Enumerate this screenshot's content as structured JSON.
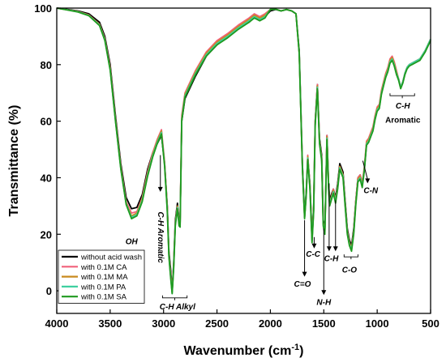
{
  "chart_data": {
    "type": "line",
    "xlabel": "Wavenumber (cm",
    "xlabel_sup": "-1",
    "xlabel_close": ")",
    "ylabel": "Transmittance (%)",
    "xlim": [
      4000,
      500
    ],
    "ylim": [
      -8,
      100
    ],
    "x_ticks": [
      4000,
      3500,
      3000,
      2500,
      2000,
      1500,
      1000,
      500
    ],
    "y_ticks": [
      0,
      20,
      40,
      60,
      80,
      100
    ],
    "grid": false,
    "legend_position": "bottom-left",
    "series": [
      {
        "name": "without acid wash",
        "color": "#000000",
        "x": [
          4000,
          3900,
          3800,
          3700,
          3600,
          3550,
          3500,
          3450,
          3400,
          3350,
          3300,
          3250,
          3200,
          3150,
          3100,
          3060,
          3020,
          2990,
          2965,
          2950,
          2935,
          2920,
          2905,
          2890,
          2870,
          2855,
          2845,
          2830,
          2800,
          2700,
          2600,
          2500,
          2400,
          2300,
          2200,
          2150,
          2100,
          2050,
          2000,
          1950,
          1900,
          1850,
          1800,
          1760,
          1730,
          1700,
          1680,
          1665,
          1650,
          1630,
          1610,
          1595,
          1580,
          1560,
          1540,
          1520,
          1505,
          1490,
          1470,
          1455,
          1445,
          1430,
          1410,
          1390,
          1370,
          1350,
          1320,
          1300,
          1280,
          1260,
          1240,
          1220,
          1200,
          1180,
          1160,
          1140,
          1120,
          1100,
          1080,
          1060,
          1040,
          1020,
          1000,
          980,
          960,
          940,
          920,
          900,
          880,
          860,
          840,
          820,
          800,
          780,
          760,
          740,
          720,
          700,
          650,
          600,
          550,
          500
        ],
        "y": [
          100,
          99.5,
          99,
          98,
          95,
          90,
          80,
          62,
          45,
          33,
          29,
          29.5,
          34,
          43,
          49,
          52,
          55,
          45,
          30,
          14,
          8,
          0,
          10,
          25,
          31,
          25,
          24,
          60,
          68,
          76,
          83,
          87,
          90,
          93,
          95,
          97,
          96,
          97,
          99,
          99.5,
          99,
          99.5,
          99,
          98,
          85,
          45,
          27,
          35,
          47,
          38,
          19,
          30,
          60,
          73,
          54,
          48,
          25,
          22,
          55,
          38,
          32,
          34,
          36,
          33,
          38,
          45,
          42,
          32,
          22,
          18,
          16,
          22,
          32,
          40,
          41,
          38,
          43,
          52,
          53,
          55,
          57,
          61,
          64,
          65,
          70,
          73,
          76,
          78,
          81,
          82,
          80,
          77,
          75,
          72,
          74,
          77,
          79,
          80,
          81,
          82,
          85,
          89
        ]
      },
      {
        "name": "with 0.1M CA",
        "color": "#f0607a",
        "x": [
          4000,
          3900,
          3800,
          3700,
          3600,
          3550,
          3500,
          3450,
          3400,
          3350,
          3300,
          3250,
          3200,
          3150,
          3100,
          3060,
          3020,
          2990,
          2965,
          2950,
          2935,
          2920,
          2905,
          2890,
          2870,
          2855,
          2845,
          2830,
          2800,
          2700,
          2600,
          2500,
          2400,
          2300,
          2200,
          2150,
          2100,
          2050,
          2000,
          1950,
          1900,
          1850,
          1800,
          1760,
          1730,
          1700,
          1680,
          1665,
          1650,
          1630,
          1610,
          1595,
          1580,
          1560,
          1540,
          1520,
          1505,
          1490,
          1470,
          1455,
          1445,
          1430,
          1410,
          1390,
          1370,
          1350,
          1320,
          1300,
          1280,
          1260,
          1240,
          1220,
          1200,
          1180,
          1160,
          1140,
          1120,
          1100,
          1080,
          1060,
          1040,
          1020,
          1000,
          980,
          960,
          940,
          920,
          900,
          880,
          860,
          840,
          820,
          800,
          780,
          760,
          740,
          720,
          700,
          650,
          600,
          550,
          500
        ],
        "y": [
          100,
          99.4,
          98.8,
          97.6,
          94.3,
          89.2,
          79,
          61,
          44,
          31.5,
          27.5,
          28,
          33,
          42,
          49,
          53.5,
          57,
          45.5,
          29.5,
          13,
          6.5,
          -0.5,
          9,
          24,
          30,
          24,
          24,
          62,
          70,
          78,
          84.5,
          88.5,
          91,
          94,
          96.5,
          98,
          97,
          98,
          99.5,
          99.6,
          99,
          99.5,
          99,
          98,
          84,
          44,
          26,
          34,
          48,
          37,
          18,
          29,
          60,
          73,
          53,
          47,
          24,
          21,
          55,
          37,
          31,
          33,
          36,
          32,
          37,
          44,
          41,
          31,
          21,
          17,
          15,
          21,
          32,
          40,
          41,
          38,
          44,
          53,
          54,
          56,
          58,
          62,
          65,
          66,
          71,
          74,
          77,
          79,
          82,
          83,
          81,
          78,
          75,
          72,
          74,
          77,
          79,
          80,
          81,
          82,
          85,
          89
        ]
      },
      {
        "name": "with 0.1M MA",
        "color": "#c98a1e",
        "x": [
          4000,
          3900,
          3800,
          3700,
          3600,
          3550,
          3500,
          3450,
          3400,
          3350,
          3300,
          3250,
          3200,
          3150,
          3100,
          3060,
          3020,
          2990,
          2965,
          2950,
          2935,
          2920,
          2905,
          2890,
          2870,
          2855,
          2845,
          2830,
          2800,
          2700,
          2600,
          2500,
          2400,
          2300,
          2200,
          2150,
          2100,
          2050,
          2000,
          1950,
          1900,
          1850,
          1800,
          1760,
          1730,
          1700,
          1680,
          1665,
          1650,
          1630,
          1610,
          1595,
          1580,
          1560,
          1540,
          1520,
          1505,
          1490,
          1470,
          1455,
          1445,
          1430,
          1410,
          1390,
          1370,
          1350,
          1320,
          1300,
          1280,
          1260,
          1240,
          1220,
          1200,
          1180,
          1160,
          1140,
          1120,
          1100,
          1080,
          1060,
          1040,
          1020,
          1000,
          980,
          960,
          940,
          920,
          900,
          880,
          860,
          840,
          820,
          800,
          780,
          760,
          740,
          720,
          700,
          650,
          600,
          550,
          500
        ],
        "y": [
          100,
          99.4,
          98.8,
          97.5,
          94.2,
          89,
          78.5,
          60.5,
          43.5,
          31,
          26.5,
          27.5,
          32.5,
          41.5,
          48.5,
          53,
          56.5,
          45,
          29,
          13,
          6,
          -0.5,
          9,
          24,
          30,
          24,
          23.5,
          61,
          69.5,
          77.5,
          84,
          88,
          90.5,
          93.5,
          96,
          97.5,
          96.5,
          97.5,
          99.5,
          99.6,
          99,
          99.5,
          99,
          98,
          84,
          44,
          26,
          34,
          47.5,
          37,
          18,
          29,
          59.5,
          72.5,
          53,
          47,
          24,
          21,
          54.5,
          37,
          31,
          33,
          35.5,
          32,
          37,
          44,
          41,
          31,
          21,
          17,
          15,
          21,
          31.5,
          39.5,
          40.5,
          37.5,
          43.5,
          52.5,
          53.5,
          55.5,
          57.5,
          61.5,
          64.5,
          65.5,
          70.5,
          73.5,
          76.5,
          78.5,
          81.5,
          82.5,
          80.5,
          77.5,
          75,
          72,
          74,
          77,
          79,
          80,
          81,
          82,
          85,
          89
        ]
      },
      {
        "name": "with 0.1M PA",
        "color": "#3fd0a0",
        "x": [
          4000,
          3900,
          3800,
          3700,
          3600,
          3550,
          3500,
          3450,
          3400,
          3350,
          3300,
          3250,
          3200,
          3150,
          3100,
          3060,
          3020,
          2990,
          2965,
          2950,
          2935,
          2920,
          2905,
          2890,
          2870,
          2855,
          2845,
          2830,
          2800,
          2700,
          2600,
          2500,
          2400,
          2300,
          2200,
          2150,
          2100,
          2050,
          2000,
          1950,
          1900,
          1850,
          1800,
          1760,
          1730,
          1700,
          1680,
          1665,
          1650,
          1630,
          1610,
          1595,
          1580,
          1560,
          1540,
          1520,
          1505,
          1490,
          1470,
          1455,
          1445,
          1430,
          1410,
          1390,
          1370,
          1350,
          1320,
          1300,
          1280,
          1260,
          1240,
          1220,
          1200,
          1180,
          1160,
          1140,
          1120,
          1100,
          1080,
          1060,
          1040,
          1020,
          1000,
          980,
          960,
          940,
          920,
          900,
          880,
          860,
          840,
          820,
          800,
          780,
          760,
          740,
          720,
          700,
          650,
          600,
          550,
          500
        ],
        "y": [
          100,
          99.4,
          98.7,
          97.4,
          94,
          88.8,
          78.2,
          60.2,
          43.2,
          30.8,
          26,
          27,
          32,
          41,
          48,
          52.5,
          56,
          44.5,
          28.5,
          12.5,
          5.5,
          -1,
          8.5,
          23.5,
          29.5,
          23.5,
          23,
          60.5,
          69,
          77,
          83.5,
          87.5,
          90,
          93,
          95.5,
          97,
          96,
          97,
          99.5,
          99.6,
          99,
          99.5,
          99,
          98,
          84,
          44,
          26,
          34,
          47,
          36.5,
          17.5,
          28.5,
          59,
          72,
          52.5,
          46.5,
          23.5,
          20.5,
          54,
          36.5,
          30.5,
          32.5,
          35,
          31.5,
          36.5,
          43.5,
          40.5,
          30.5,
          20.5,
          16.5,
          14.5,
          20.5,
          31,
          39,
          40,
          37,
          43,
          52,
          53,
          55,
          57,
          61,
          64,
          65,
          70,
          73,
          76,
          78,
          81,
          82,
          80,
          77,
          75,
          72,
          74,
          77,
          79,
          80,
          81,
          82,
          85,
          89
        ]
      },
      {
        "name": "with 0.1M SA",
        "color": "#1f9a1f",
        "x": [
          4000,
          3900,
          3800,
          3700,
          3600,
          3550,
          3500,
          3450,
          3400,
          3350,
          3300,
          3250,
          3200,
          3150,
          3100,
          3060,
          3020,
          2990,
          2965,
          2950,
          2935,
          2920,
          2905,
          2890,
          2870,
          2855,
          2845,
          2830,
          2800,
          2700,
          2600,
          2500,
          2400,
          2300,
          2200,
          2150,
          2100,
          2050,
          2000,
          1950,
          1900,
          1850,
          1800,
          1760,
          1730,
          1700,
          1680,
          1665,
          1650,
          1630,
          1610,
          1595,
          1580,
          1560,
          1540,
          1520,
          1505,
          1490,
          1470,
          1455,
          1445,
          1430,
          1410,
          1390,
          1370,
          1350,
          1320,
          1300,
          1280,
          1260,
          1240,
          1220,
          1200,
          1180,
          1160,
          1140,
          1120,
          1100,
          1080,
          1060,
          1040,
          1020,
          1000,
          980,
          960,
          940,
          920,
          900,
          880,
          860,
          840,
          820,
          800,
          780,
          760,
          740,
          720,
          700,
          650,
          600,
          550,
          500
        ],
        "y": [
          100,
          99.3,
          98.6,
          97.3,
          93.8,
          88.5,
          78,
          60,
          43,
          30.5,
          25.5,
          26.5,
          31.5,
          40.5,
          47.5,
          52,
          55.5,
          44,
          28,
          12,
          5,
          -1,
          8,
          23,
          29,
          23,
          22.5,
          60,
          68.5,
          76.5,
          83,
          87,
          89.5,
          92.5,
          95,
          96.5,
          95.5,
          96.5,
          99.5,
          99.6,
          99,
          99.5,
          99,
          98,
          84,
          43.5,
          25.5,
          33.5,
          46.5,
          36,
          17,
          28,
          58.5,
          71.5,
          52,
          46,
          23,
          20,
          53.5,
          36,
          30,
          32,
          34.5,
          31,
          36,
          43,
          40,
          30,
          20,
          16,
          14,
          20,
          30.5,
          38.5,
          39.5,
          36.5,
          42.5,
          51.5,
          52.5,
          54.5,
          56.5,
          60.5,
          63.5,
          64.5,
          69.5,
          72.5,
          75.5,
          77.5,
          80.5,
          81.5,
          79.5,
          76.5,
          74.5,
          71.5,
          73.5,
          76.5,
          78.5,
          79.5,
          80.5,
          81.5,
          84.5,
          88.5
        ]
      }
    ],
    "annotations": [
      {
        "text": "OH",
        "style": "italic",
        "x": 3300,
        "y": 16.5
      },
      {
        "text": "C-H",
        "style": "italic",
        "suffix": " Aromatic",
        "x": 3030,
        "y": 28,
        "vertical": true
      },
      {
        "text": "C-H",
        "style": "italic",
        "suffix": " Alkyl",
        "x": 2870,
        "y": -6.5
      },
      {
        "text": "C=O",
        "style": "italic",
        "x": 1700,
        "y": 1.5
      },
      {
        "text": "C-C",
        "style": "italic",
        "x": 1600,
        "y": 12
      },
      {
        "text": "N-H",
        "style": "italic",
        "x": 1500,
        "y": -5
      },
      {
        "text": "C-H",
        "style": "italic",
        "x": 1430,
        "y": 10.5
      },
      {
        "text": "C-O",
        "style": "italic",
        "x": 1260,
        "y": 6.5
      },
      {
        "text": "C-N",
        "style": "italic",
        "x": 1060,
        "y": 34.5
      },
      {
        "text": "C-H",
        "style": "italic",
        "x": 760,
        "y": 64.5
      },
      {
        "text": "Aromatic",
        "style": "plain",
        "x": 760,
        "y": 59.5
      }
    ]
  }
}
